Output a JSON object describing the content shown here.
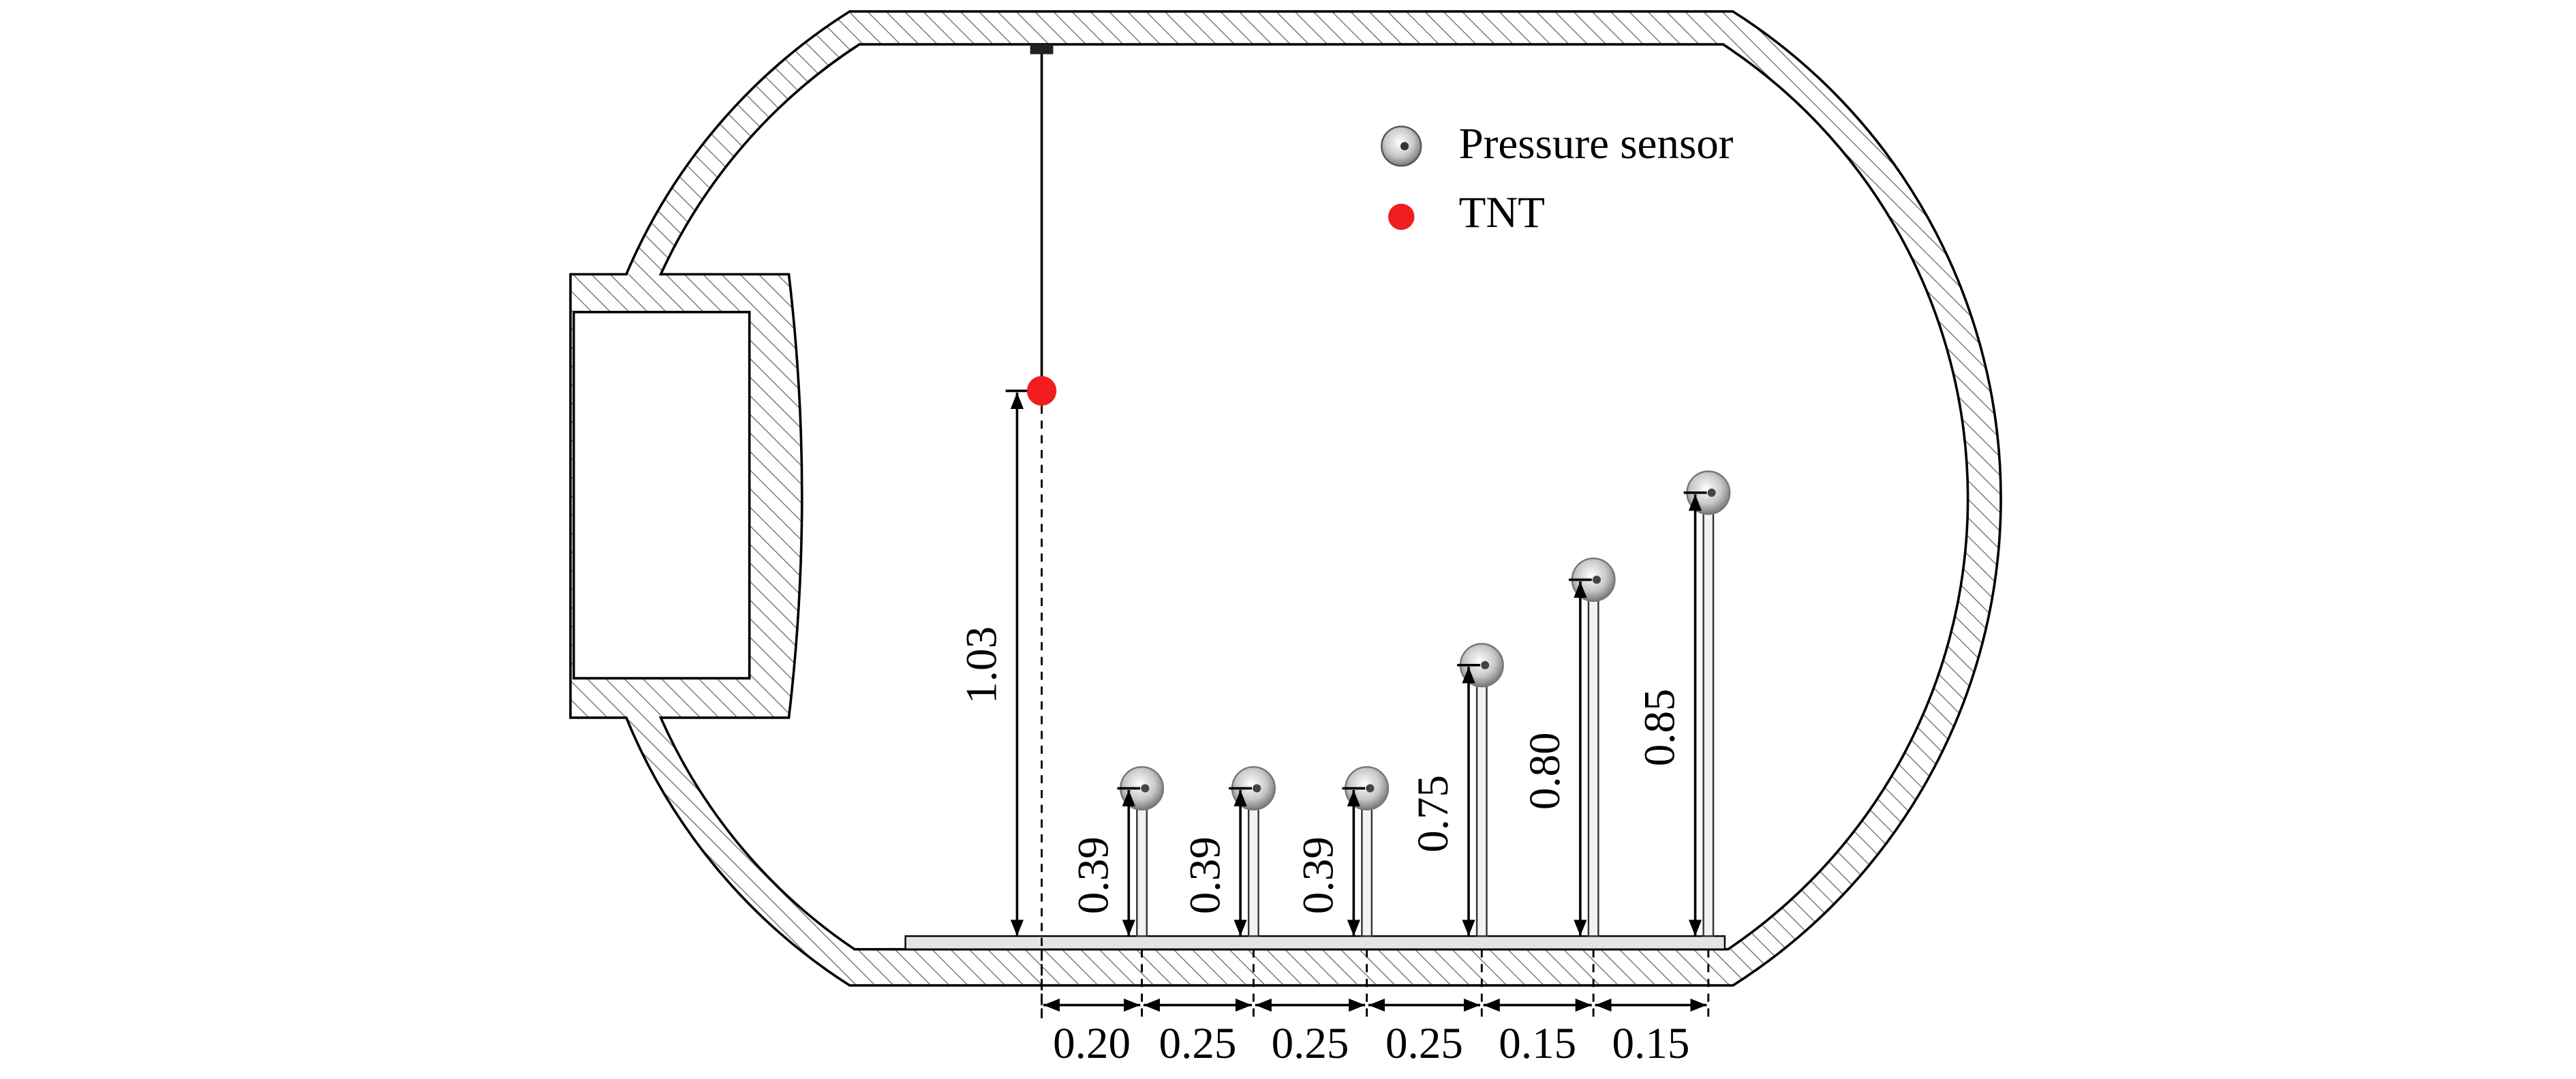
{
  "legend": {
    "pressure_sensor": "Pressure sensor",
    "tnt": "TNT"
  },
  "charge_height": "1.03",
  "sensor_heights": [
    "0.39",
    "0.39",
    "0.39",
    "0.75",
    "0.80",
    "0.85"
  ],
  "spacings": [
    "0.20",
    "0.25",
    "0.25",
    "0.25",
    "0.15",
    "0.15"
  ]
}
